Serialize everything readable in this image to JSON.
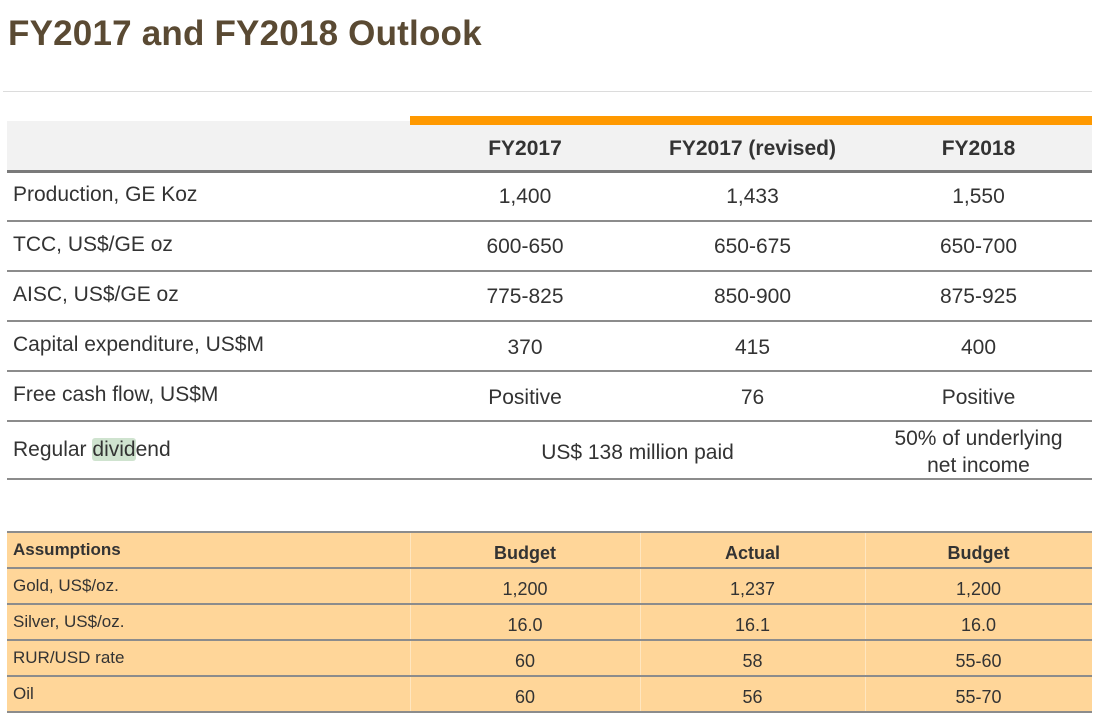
{
  "title": "FY2017 and FY2018 Outlook",
  "colors": {
    "title": "#5a4a33",
    "accent_bar": "#ff9900",
    "header_bg": "#f2f2f2",
    "assumptions_bg": "#ffd699",
    "highlight": "#cfe3cf"
  },
  "outlook_table": {
    "columns": [
      "",
      "FY2017",
      "FY2017 (revised)",
      "FY2018"
    ],
    "rows": [
      {
        "label": "Production, GE Koz",
        "values": [
          "1,400",
          "1,433",
          "1,550"
        ]
      },
      {
        "label": "TCC, US$/GE oz",
        "values": [
          "600-650",
          "650-675",
          "650-700"
        ]
      },
      {
        "label": "AISC, US$/GE oz",
        "values": [
          "775-825",
          "850-900",
          "875-925"
        ]
      },
      {
        "label": "Capital expenditure, US$M",
        "values": [
          "370",
          "415",
          "400"
        ]
      },
      {
        "label": "Free cash flow, US$M",
        "values": [
          "Positive",
          "76",
          "Positive"
        ]
      }
    ],
    "dividend": {
      "label_pre": "Regular ",
      "label_highlight": "divid",
      "label_post": "end",
      "fy2017_merged": "US$ 138 million paid",
      "fy2018_line1": "50% of underlying",
      "fy2018_line2": "net income"
    }
  },
  "assumptions_table": {
    "columns": [
      "Assumptions",
      "Budget",
      "Actual",
      "Budget"
    ],
    "rows": [
      {
        "label": "Gold, US$/oz.",
        "values": [
          "1,200",
          "1,237",
          "1,200"
        ]
      },
      {
        "label": "Silver, US$/oz.",
        "values": [
          "16.0",
          "16.1",
          "16.0"
        ]
      },
      {
        "label": "RUR/USD rate",
        "values": [
          "60",
          "58",
          "55-60"
        ]
      },
      {
        "label": "Oil",
        "values": [
          "60",
          "56",
          "55-70"
        ]
      }
    ]
  }
}
